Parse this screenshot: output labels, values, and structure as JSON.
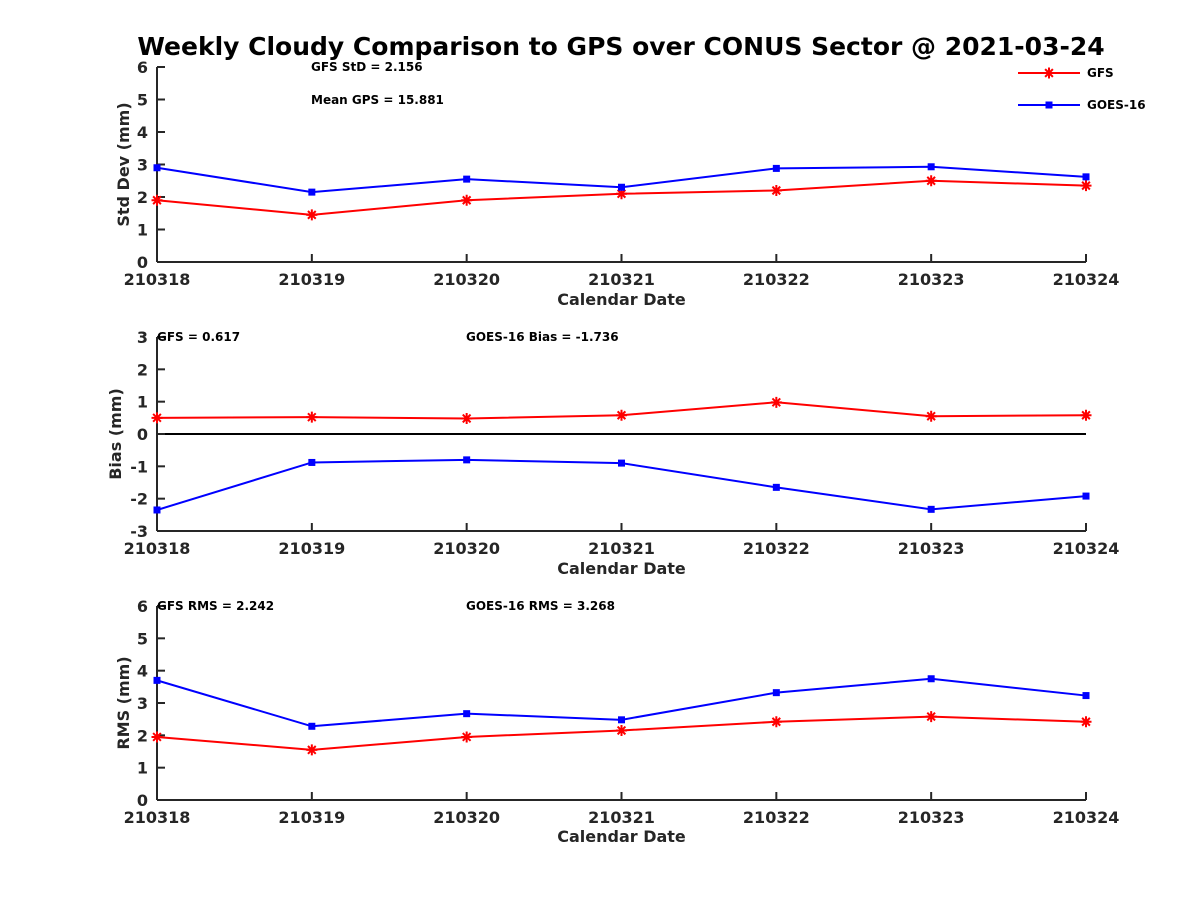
{
  "chart_data": [
    {
      "type": "line",
      "title": "Weekly Cloudy Comparison to GPS over CONUS Sector @ 2021-03-24",
      "xlabel": "Calendar Date",
      "ylabel": "Std Dev (mm)",
      "categories": [
        "210318",
        "210319",
        "210320",
        "210321",
        "210322",
        "210323",
        "210324"
      ],
      "ylim": [
        0,
        6
      ],
      "yticks": [
        "0",
        "1",
        "2",
        "3",
        "4",
        "5",
        "6"
      ],
      "series": [
        {
          "name": "GFS",
          "color": "#ff0000",
          "marker": "star",
          "values": [
            1.9,
            1.45,
            1.9,
            2.1,
            2.2,
            2.5,
            2.35
          ]
        },
        {
          "name": "GOES-16",
          "color": "#0000ff",
          "marker": "square",
          "values": [
            2.9,
            2.15,
            2.55,
            2.3,
            2.88,
            2.93,
            2.62
          ]
        }
      ],
      "annotations": [
        "GFS StD = 2.156",
        "Mean GPS = 15.881"
      ],
      "legend": {
        "position": "top-right",
        "entries": [
          "GFS",
          "GOES-16"
        ]
      }
    },
    {
      "type": "line",
      "xlabel": "Calendar Date",
      "ylabel": "Bias (mm)",
      "categories": [
        "210318",
        "210319",
        "210320",
        "210321",
        "210322",
        "210323",
        "210324"
      ],
      "ylim": [
        -3,
        3
      ],
      "yticks": [
        "-3",
        "-2",
        "-1",
        "0",
        "1",
        "2",
        "3"
      ],
      "zero_line": true,
      "series": [
        {
          "name": "GFS",
          "color": "#ff0000",
          "marker": "star",
          "values": [
            0.5,
            0.52,
            0.48,
            0.58,
            0.98,
            0.55,
            0.58
          ]
        },
        {
          "name": "GOES-16",
          "color": "#0000ff",
          "marker": "square",
          "values": [
            -2.35,
            -0.88,
            -0.8,
            -0.9,
            -1.65,
            -2.33,
            -1.92
          ]
        }
      ],
      "annotations": [
        "GFS = 0.617",
        "GOES-16 Bias  = -1.736"
      ]
    },
    {
      "type": "line",
      "xlabel": "Calendar Date",
      "ylabel": "RMS (mm)",
      "categories": [
        "210318",
        "210319",
        "210320",
        "210321",
        "210322",
        "210323",
        "210324"
      ],
      "ylim": [
        0,
        6
      ],
      "yticks": [
        "0",
        "1",
        "2",
        "3",
        "4",
        "5",
        "6"
      ],
      "series": [
        {
          "name": "GFS",
          "color": "#ff0000",
          "marker": "star",
          "values": [
            1.95,
            1.55,
            1.95,
            2.15,
            2.42,
            2.58,
            2.42
          ]
        },
        {
          "name": "GOES-16",
          "color": "#0000ff",
          "marker": "square",
          "values": [
            3.7,
            2.28,
            2.67,
            2.48,
            3.32,
            3.75,
            3.23
          ]
        }
      ],
      "annotations": [
        "GFS RMS = 2.242",
        "GOES-16 RMS = 3.268"
      ]
    }
  ]
}
